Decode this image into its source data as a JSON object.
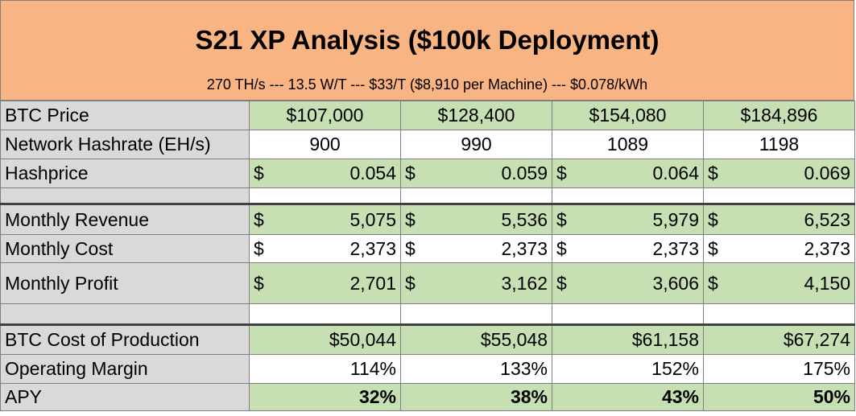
{
  "title": "S21 XP Analysis ($100k Deployment)",
  "subtitle": "270 TH/s --- 13.5 W/T --- $33/T ($8,910 per Machine) --- $0.078/kWh",
  "currency_symbol": "$",
  "rows": {
    "btc_price": {
      "label": "BTC Price",
      "values": [
        "$107,000",
        "$128,400",
        "$154,080",
        "$184,896"
      ]
    },
    "network_hashrate": {
      "label": "Network Hashrate (EH/s)",
      "values": [
        "900",
        "990",
        "1089",
        "1198"
      ]
    },
    "hashprice": {
      "label": "Hashprice",
      "values": [
        "0.054",
        "0.059",
        "0.064",
        "0.069"
      ]
    },
    "monthly_revenue": {
      "label": "Monthly Revenue",
      "values": [
        "5,075",
        "5,536",
        "5,979",
        "6,523"
      ]
    },
    "monthly_cost": {
      "label": "Monthly Cost",
      "values": [
        "2,373",
        "2,373",
        "2,373",
        "2,373"
      ]
    },
    "monthly_profit": {
      "label": "Monthly Profit",
      "values": [
        "2,701",
        "3,162",
        "3,606",
        "4,150"
      ]
    },
    "btc_cost_of_production": {
      "label": "BTC Cost of Production",
      "values": [
        "$50,044",
        "$55,048",
        "$61,158",
        "$67,274"
      ]
    },
    "operating_margin": {
      "label": "Operating Margin",
      "values": [
        "114%",
        "133%",
        "152%",
        "175%"
      ]
    },
    "apy": {
      "label": "APY",
      "values": [
        "32%",
        "38%",
        "43%",
        "50%"
      ]
    }
  },
  "colors": {
    "header_fill": "#f8b482",
    "label_fill": "#d9d9d9",
    "green_fill": "#c6e0b4",
    "grid_line": "#7f7f7f"
  }
}
